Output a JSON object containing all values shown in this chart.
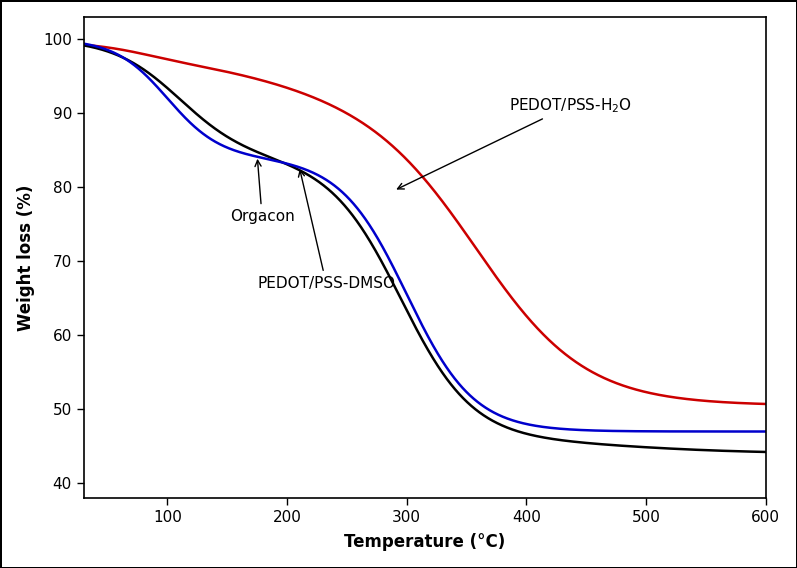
{
  "xlabel": "Temperature (°C)",
  "ylabel": "Weight loss (%)",
  "xlim": [
    30,
    600
  ],
  "ylim": [
    38,
    103
  ],
  "xticks": [
    100,
    200,
    300,
    400,
    500,
    600
  ],
  "yticks": [
    40,
    50,
    60,
    70,
    80,
    90,
    100
  ],
  "background_color": "#ffffff",
  "line_colors": {
    "orgacon": "#000000",
    "pedot_h2o": "#cc0000",
    "pedot_dmso": "#0000cc"
  }
}
